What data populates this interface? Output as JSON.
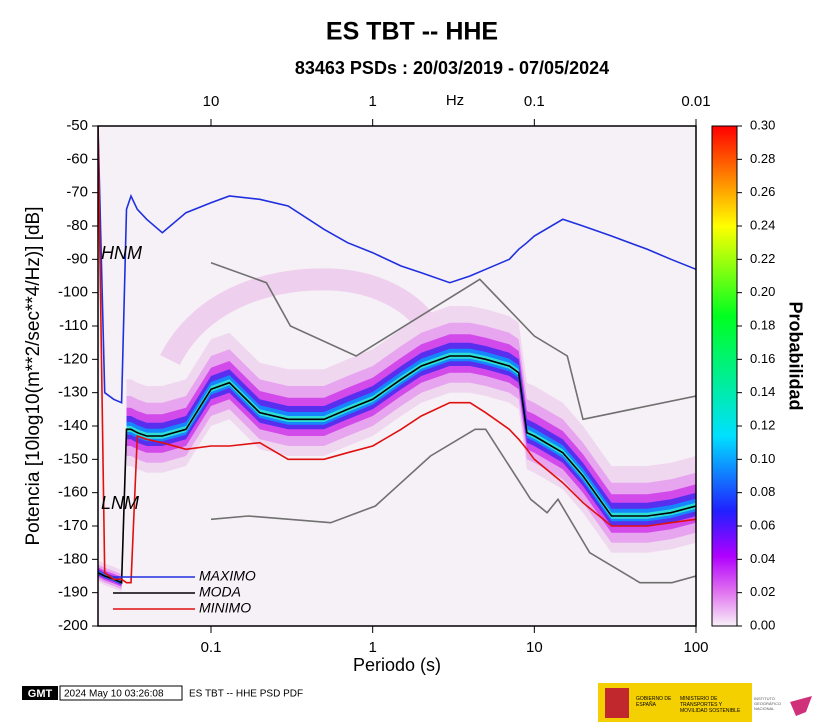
{
  "chart_data": {
    "type": "line",
    "title": "ES TBT -- HHE",
    "subtitle": "83463 PSDs : 20/03/2019 - 07/05/2024",
    "x_label": "Periodo (s)",
    "x2_label": "Hz",
    "y_label": "Potencia [10log10(m**2/sec**4/Hz)] [dB]",
    "colorbar_label": "Probabilidad",
    "log_x": true,
    "xlim": [
      0.02,
      100
    ],
    "xticks": [
      0.1,
      1,
      10,
      100
    ],
    "x2lim": [
      50,
      0.01
    ],
    "x2ticks": [
      10,
      1,
      0.1,
      0.01
    ],
    "ylim": [
      -200,
      -50
    ],
    "yticks": [
      -50,
      -60,
      -70,
      -80,
      -90,
      -100,
      -110,
      -120,
      -130,
      -140,
      -150,
      -160,
      -170,
      -180,
      -190,
      -200
    ],
    "clim": [
      0,
      0.3
    ],
    "cticks": [
      {
        "value": 0,
        "label": "0.00"
      },
      {
        "value": 0.02,
        "label": "0.02"
      },
      {
        "value": 0.04,
        "label": "0.04"
      },
      {
        "value": 0.06,
        "label": "0.06"
      },
      {
        "value": 0.08,
        "label": "0.08"
      },
      {
        "value": 0.1,
        "label": "0.10"
      },
      {
        "value": 0.12,
        "label": "0.12"
      },
      {
        "value": 0.14,
        "label": "0.14"
      },
      {
        "value": 0.16,
        "label": "0.16"
      },
      {
        "value": 0.18,
        "label": "0.18"
      },
      {
        "value": 0.2,
        "label": "0.20"
      },
      {
        "value": 0.22,
        "label": "0.22"
      },
      {
        "value": 0.24,
        "label": "0.24"
      },
      {
        "value": 0.26,
        "label": "0.26"
      },
      {
        "value": 0.28,
        "label": "0.28"
      },
      {
        "value": 0.3,
        "label": "0.30"
      }
    ],
    "x": [
      0.02,
      0.022,
      0.025,
      0.028,
      0.03,
      0.032,
      0.035,
      0.04,
      0.05,
      0.07,
      0.1,
      0.13,
      0.2,
      0.3,
      0.5,
      0.7,
      1,
      1.5,
      2,
      3,
      4,
      5,
      7,
      8,
      9,
      10,
      15,
      20,
      30,
      50,
      70,
      100
    ],
    "series": [
      {
        "name": "MAXIMO",
        "color": "#1f2fe0",
        "values": [
          -50,
          -130,
          -132,
          -133,
          -75,
          -71,
          -75,
          -78,
          -82,
          -76,
          -73,
          -71,
          -72,
          -74,
          -81,
          -85,
          -88,
          -92,
          -94,
          -97,
          -95,
          -93,
          -90,
          -87,
          -85,
          -83,
          -78,
          -80,
          -83,
          -87,
          -90,
          -93
        ]
      },
      {
        "name": "MODA",
        "color": "#000000",
        "values": [
          -184,
          -185,
          -186,
          -187,
          -141,
          -141,
          -142,
          -143,
          -143,
          -141,
          -129,
          -127,
          -136,
          -138,
          -138,
          -135,
          -132,
          -126,
          -122,
          -119,
          -119,
          -120,
          -122,
          -124,
          -142,
          -143,
          -148,
          -155,
          -167,
          -167,
          -166,
          -164
        ]
      },
      {
        "name": "MINIMO",
        "color": "#e01010",
        "values": [
          -50,
          -184,
          -186,
          -186,
          -187,
          -187,
          -143,
          -144,
          -145,
          -147,
          -146,
          -146,
          -145,
          -150,
          -150,
          -148,
          -146,
          -141,
          -137,
          -133,
          -133,
          -136,
          -141,
          -144,
          -147,
          -150,
          -157,
          -163,
          -170,
          -170,
          -169,
          -168
        ]
      }
    ],
    "models": [
      {
        "name": "HNM",
        "color": "#707070",
        "x": [
          0.1,
          0.22,
          0.31,
          0.79,
          4.6,
          10,
          16,
          20,
          100
        ],
        "values": [
          -91,
          -97,
          -110,
          -119,
          -96,
          -113,
          -119,
          -138,
          -131
        ]
      },
      {
        "name": "LNM",
        "color": "#707070",
        "x": [
          0.1,
          0.17,
          0.55,
          1.04,
          2.28,
          4.3,
          5,
          9.5,
          12,
          14,
          22,
          45,
          71,
          100
        ],
        "values": [
          -168,
          -167,
          -169,
          -164,
          -149,
          -141,
          -141,
          -162,
          -166,
          -162,
          -178,
          -187,
          -187,
          -185
        ]
      }
    ],
    "footer": {
      "logo": "GMT",
      "timestamp": "2024 May 10 03:26:08",
      "caption": "ES TBT -- HHE PSD PDF",
      "gov": "GOBIERNO DE ESPAÑA",
      "ministry": "MINISTERIO DE TRANSPORTES Y MOVILIDAD SOSTENIBLE",
      "institute": "INSTITUTO GEOGRÁFICO NACIONAL"
    }
  }
}
